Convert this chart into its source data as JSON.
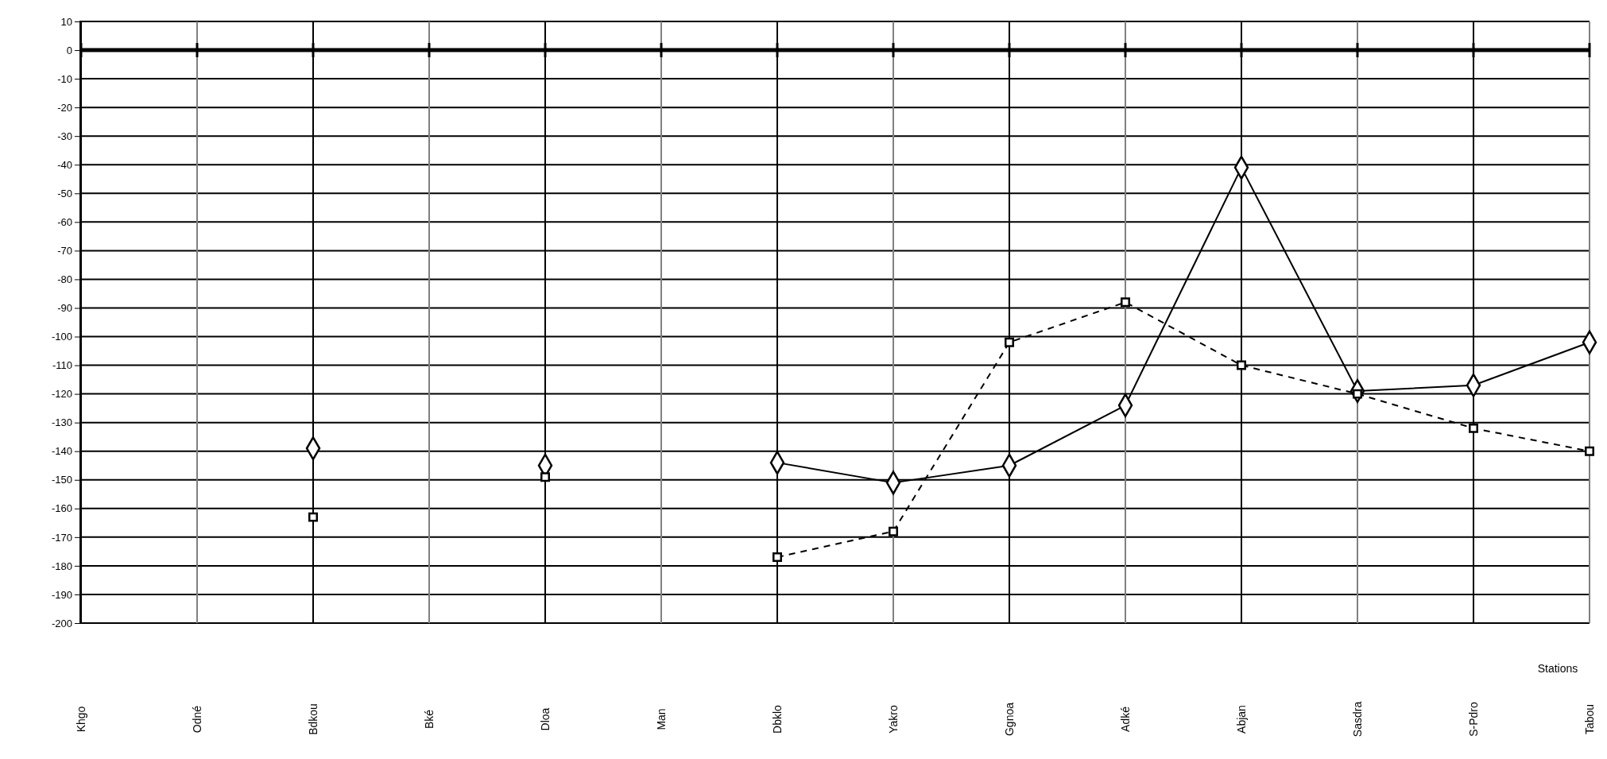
{
  "chart_data": {
    "type": "line",
    "xlabel": "Stations",
    "categories": [
      "Khgo",
      "Odné",
      "Bdkou",
      "Bké",
      "Dloa",
      "Man",
      "Dbklo",
      "Yakro",
      "Ggnoa",
      "Adké",
      "Abjan",
      "Sasdra",
      "S-Pdro",
      "Tabou"
    ],
    "series": [
      {
        "color": "#000000",
        "marker": "diamond",
        "line_style": "solid",
        "values": [
          null,
          null,
          -139,
          null,
          -145,
          null,
          -144,
          -151,
          -145,
          -124,
          -41,
          -119,
          -117,
          -102
        ]
      },
      {
        "color": "#000000",
        "marker": "square",
        "line_style": "dashed",
        "values": [
          null,
          null,
          -163,
          null,
          -149,
          null,
          -177,
          -168,
          -102,
          -88,
          -110,
          -120,
          -132,
          -140
        ]
      }
    ],
    "ylim": [
      -200,
      10
    ],
    "yticks": [
      -200,
      -190,
      -180,
      -170,
      -160,
      -150,
      -140,
      -130,
      -120,
      -110,
      -100,
      -90,
      -80,
      -70,
      -60,
      -50,
      -40,
      -30,
      -20,
      -10,
      0,
      10
    ],
    "grid": true,
    "legend": false
  }
}
